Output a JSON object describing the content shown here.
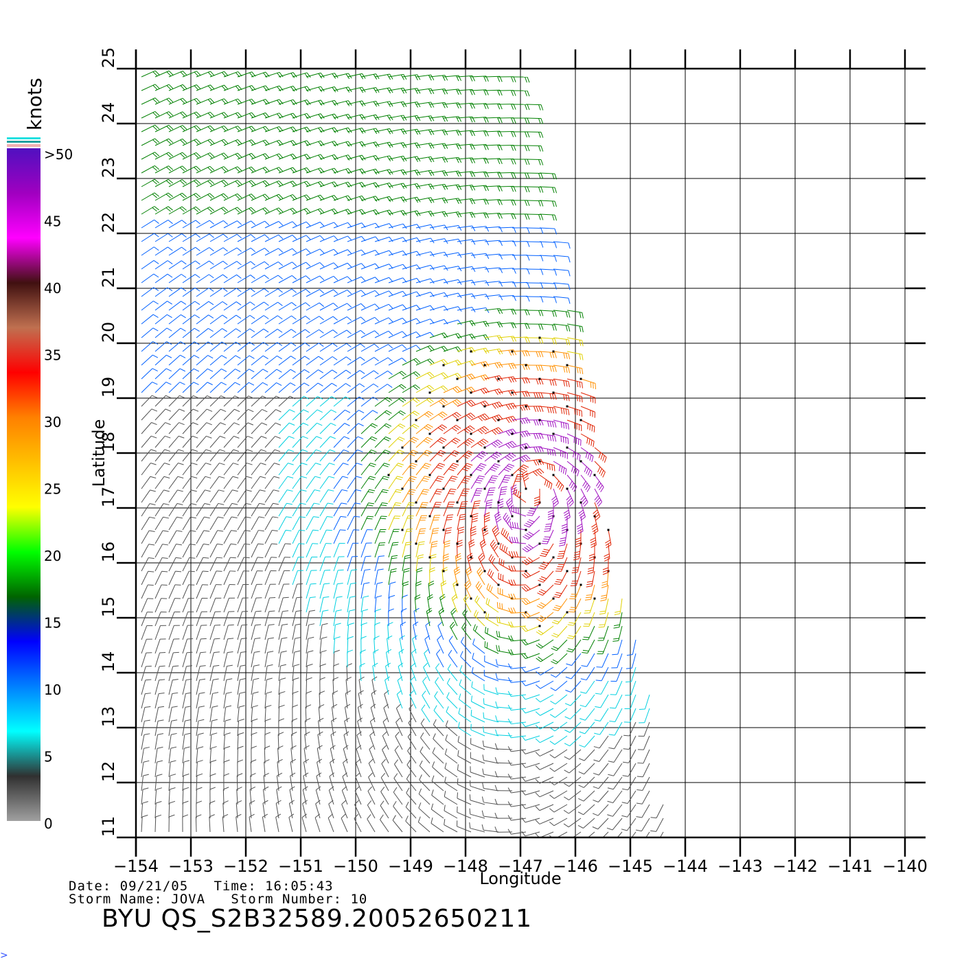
{
  "map": {
    "lon_ticks": [
      -154,
      -153,
      -152,
      -151,
      -150,
      -149,
      -148,
      -147,
      -146,
      -145,
      -144,
      -143,
      -142,
      -141,
      -140
    ],
    "lat_ticks": [
      11,
      12,
      13,
      14,
      15,
      16,
      17,
      18,
      19,
      20,
      21,
      22,
      23,
      24,
      25
    ],
    "lon_range": [
      -154,
      -140
    ],
    "lat_range": [
      11,
      25
    ],
    "xlabel": "Longitude",
    "ylabel": "Latitude",
    "storm_center": {
      "lon": -146.8,
      "lat": 17.5
    },
    "swath_east_edge": [
      {
        "lat": 25,
        "lon": -147.0
      },
      {
        "lat": 20,
        "lon": -146.0
      },
      {
        "lat": 18,
        "lon": -145.6
      },
      {
        "lat": 16,
        "lon": -145.3
      },
      {
        "lat": 14,
        "lon": -144.7
      },
      {
        "lat": 11,
        "lon": -144.3
      }
    ]
  },
  "legend": {
    "title": "knots",
    "labels": [
      ">50",
      "45",
      "40",
      "35",
      "30",
      "25",
      "20",
      "15",
      "10",
      "5",
      "0"
    ],
    "color_stops": [
      "#a0a0a0",
      "#303030",
      "#00ffff",
      "#0080ff",
      "#0000ff",
      "#006400",
      "#00ff00",
      "#ffff00",
      "#ffc000",
      "#ff8000",
      "#ff0000",
      "#c07050",
      "#401010",
      "#ff00ff",
      "#a000c0",
      "#5010c0"
    ]
  },
  "footer": {
    "date_time": "Date: 09/21/05   Time: 16:05:43",
    "storm": "Storm Name: JOVA   Storm Number: 10",
    "title": "BYU QS_S2B32589.20052650211"
  }
}
